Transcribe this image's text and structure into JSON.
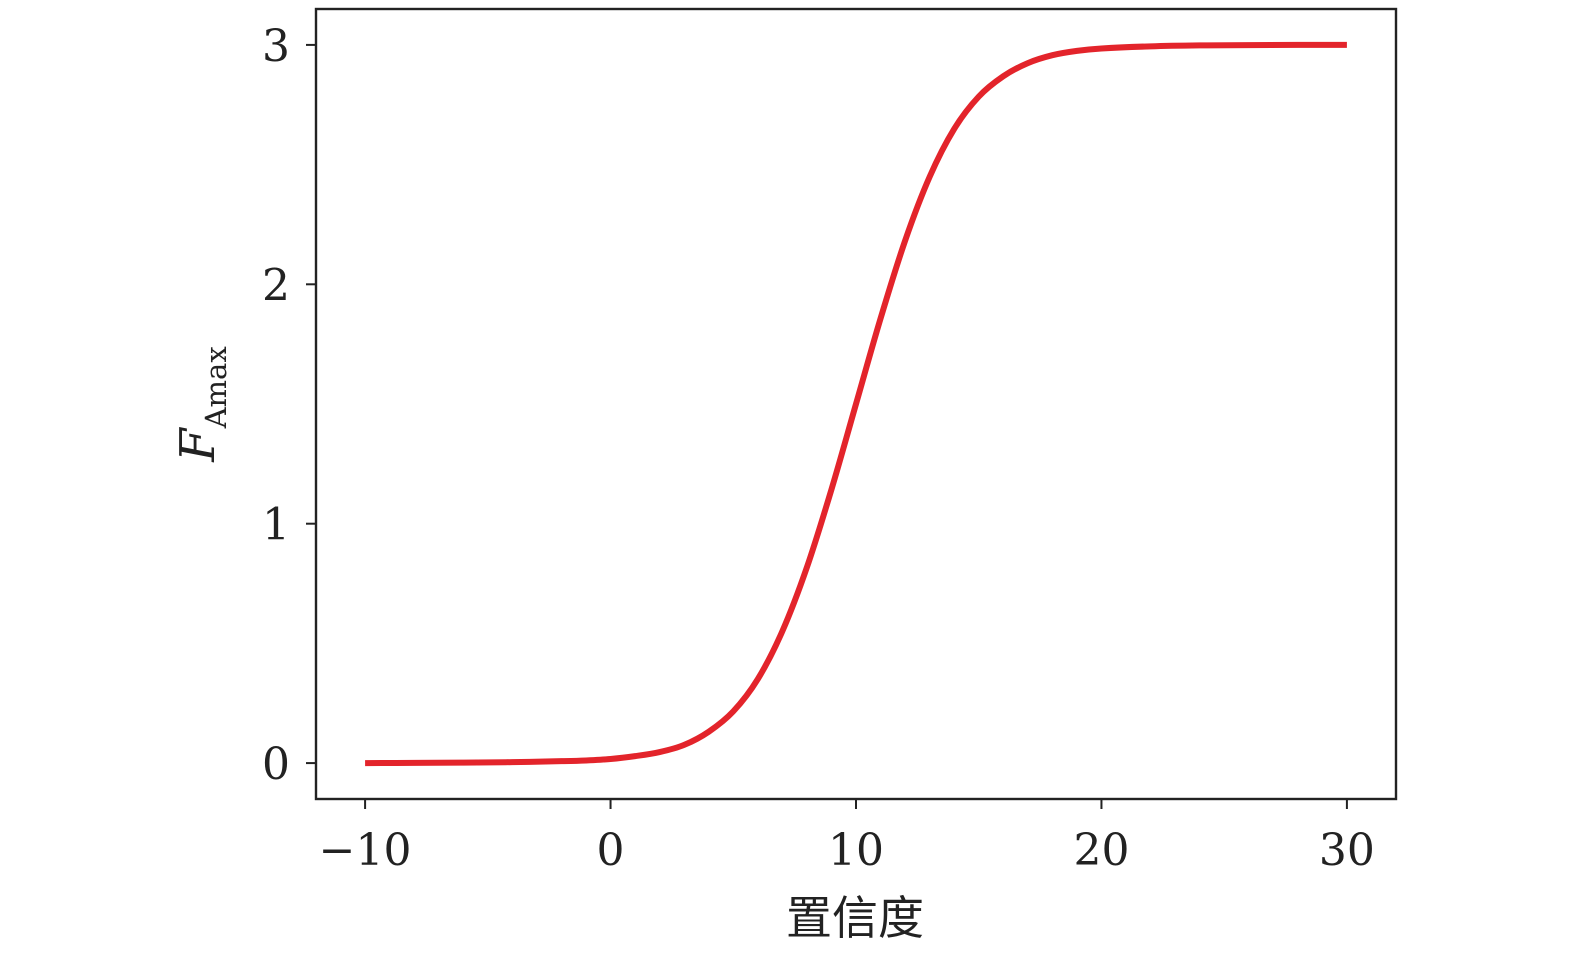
{
  "chart_data": {
    "type": "line",
    "title": "",
    "xlabel": "置信度",
    "ylabel": {
      "main": "F",
      "subscript": "Amax"
    },
    "xlim": [
      -12,
      32
    ],
    "ylim": [
      -0.15,
      3.15
    ],
    "x_ticks": [
      -10,
      0,
      10,
      20,
      30
    ],
    "x_tick_labels": [
      "−10",
      "0",
      "10",
      "20",
      "30"
    ],
    "y_ticks": [
      0,
      1,
      2,
      3
    ],
    "y_tick_labels": [
      "0",
      "1",
      "2",
      "3"
    ],
    "grid": false,
    "legend": "none",
    "series": [
      {
        "color": "#e3242b",
        "x": [
          -10,
          -8,
          -6,
          -4,
          -2,
          -1,
          0,
          1,
          2,
          3,
          4,
          5,
          6,
          7,
          8,
          9,
          10,
          11,
          12,
          13,
          14,
          15,
          16,
          17,
          18,
          19,
          20,
          22,
          24,
          26,
          28,
          30
        ],
        "y": [
          0.0,
          0.001,
          0.002,
          0.004,
          0.008,
          0.011,
          0.017,
          0.029,
          0.046,
          0.076,
          0.131,
          0.216,
          0.351,
          0.551,
          0.818,
          1.143,
          1.5,
          1.857,
          2.182,
          2.449,
          2.649,
          2.784,
          2.869,
          2.924,
          2.957,
          2.975,
          2.985,
          2.994,
          2.998,
          2.999,
          3.0,
          3.0
        ]
      }
    ]
  }
}
